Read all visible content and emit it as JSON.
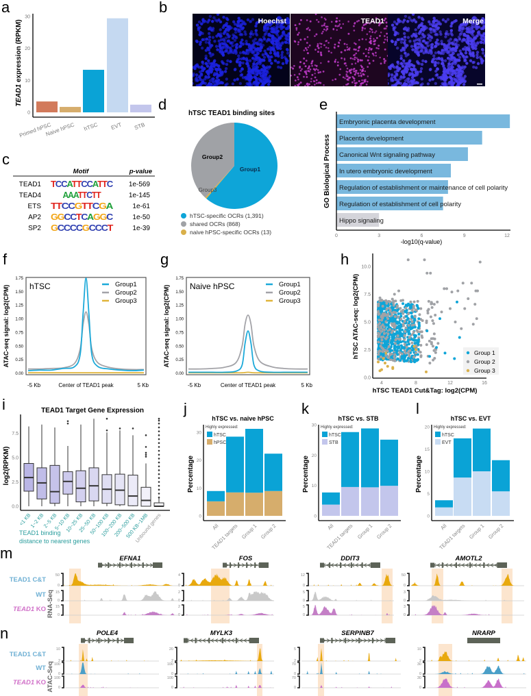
{
  "panel_labels": {
    "a": "a",
    "b": "b",
    "c": "c",
    "d": "d",
    "e": "e",
    "f": "f",
    "g": "g",
    "h": "h",
    "i": "i",
    "j": "j",
    "k": "k",
    "l": "l",
    "m": "m",
    "n": "n"
  },
  "panel_b": {
    "channels": [
      "Hoechst",
      "TEAD1",
      "Merge"
    ],
    "colors": {
      "hoechst": "#1c22e0",
      "tead1": "#c23ccb",
      "merge": "#4b3df0"
    }
  },
  "panel_c": {
    "headers": {
      "motif": "Motif",
      "pvalue": "p-value"
    },
    "rows": [
      {
        "name": "TEAD1",
        "motif": "TCCATTCCATTC",
        "pvalue": "1e-569"
      },
      {
        "name": "TEAD4",
        "motif": "AAATTCTT",
        "pvalue": "1e-145"
      },
      {
        "name": "ETS",
        "motif": "TTCCGTTCGA",
        "pvalue": "1e-61"
      },
      {
        "name": "AP2",
        "motif": "GGCCTCAGGC",
        "pvalue": "1e-50"
      },
      {
        "name": "SP2",
        "motif": "GCCCCGCCCT",
        "pvalue": "1e-39"
      }
    ],
    "nucleotide_colors": {
      "A": "#1fa03a",
      "C": "#2f3fb0",
      "G": "#f2a516",
      "T": "#e0261f"
    }
  },
  "chart_data": [
    {
      "id": "a",
      "type": "bar",
      "ylabel_italic": "TEAD1",
      "ylabel": " expression (RPKM)",
      "categories": [
        "Primed hPSC",
        "Naive hPSC",
        "hTSC",
        "EVT",
        "STB"
      ],
      "values": [
        3.4,
        1.7,
        13.3,
        29.4,
        2.4
      ],
      "colors": [
        "#d27a5b",
        "#d6ad6c",
        "#0aa3d6",
        "#c5d9f1",
        "#c3c6ec"
      ],
      "yticks": [
        0,
        10,
        20,
        30
      ],
      "ylim": [
        0,
        31
      ]
    },
    {
      "id": "d",
      "type": "pie",
      "title": "hTSC TEAD1 binding sites",
      "slices": [
        {
          "label": "Group1",
          "legend": "hTSC-specific OCRs (1,391)",
          "value": 1391,
          "color": "#0ea5d8"
        },
        {
          "label": "Group2",
          "legend": "shared OCRs (868)",
          "value": 868,
          "color": "#a0a2a6"
        },
        {
          "label": "Group3",
          "legend": "naive hPSC-specific OCRs (13)",
          "value": 13,
          "color": "#d9b04a"
        }
      ]
    },
    {
      "id": "e",
      "type": "bar",
      "orientation": "horizontal",
      "ylabel": "GO Biological Process",
      "xlabel": "-log10(q-value)",
      "categories": [
        "Embryonic placenta development",
        "Placenta development",
        "Canonical Wnt signaling pathway",
        "In utero embryonic development",
        "Regulation of establishment or maintenance of cell polarity",
        "Regulation of establishment of cell polarity",
        "Hippo signaling"
      ],
      "values": [
        12.2,
        10.25,
        9.25,
        8.05,
        7.85,
        7.5,
        3.0
      ],
      "colors": [
        "#79b8de",
        "#79b8de",
        "#79b8de",
        "#79b8de",
        "#79b8de",
        "#79b8de",
        "#d4d4da"
      ],
      "xticks": [
        0,
        3,
        6,
        9,
        12
      ],
      "xlim": [
        0,
        12.3
      ]
    },
    {
      "id": "f",
      "type": "line",
      "panel_title": "hTSC",
      "ylabel": "ATAC-seq signal: log2(CPM)",
      "xtick_labels": [
        "-5 Kb",
        "Center of TEAD1 peak",
        "5 Kb"
      ],
      "x": [
        -5,
        -4,
        -3,
        -2,
        -1,
        -0.5,
        -0.25,
        0,
        0.25,
        0.5,
        1,
        2,
        3,
        4,
        5
      ],
      "series": [
        {
          "name": "Group1",
          "color": "#1ba9d9",
          "values": [
            0.05,
            0.06,
            0.06,
            0.09,
            0.12,
            0.35,
            1.1,
            1.75,
            1.1,
            0.35,
            0.13,
            0.08,
            0.06,
            0.05,
            0.06
          ]
        },
        {
          "name": "Group2",
          "color": "#a3a3a8",
          "values": [
            0.08,
            0.08,
            0.09,
            0.1,
            0.18,
            0.45,
            0.9,
            1.13,
            0.9,
            0.45,
            0.2,
            0.11,
            0.08,
            0.07,
            0.07
          ]
        },
        {
          "name": "Group3",
          "color": "#e0b43a",
          "values": [
            0.01,
            0.01,
            0.01,
            0.01,
            0.01,
            0.01,
            0.01,
            0.01,
            0.01,
            0.01,
            0.01,
            0.01,
            0.01,
            0.01,
            0.01
          ]
        }
      ],
      "yticks": [
        0,
        0.25,
        0.5,
        0.75,
        1,
        1.25,
        1.5,
        1.75
      ],
      "ylim": [
        0,
        1.79
      ],
      "xlim": [
        -5,
        5
      ]
    },
    {
      "id": "g",
      "type": "line",
      "panel_title": "Naive hPSC",
      "ylabel": "ATAC-seq signal: log2(CPM)",
      "xtick_labels": [
        "-5 Kb",
        "Center of TEAD1 peak",
        "5 Kb"
      ],
      "x": [
        -5,
        -4,
        -3,
        -2,
        -1,
        -0.5,
        -0.25,
        0,
        0.25,
        0.5,
        1,
        2,
        3,
        4,
        5
      ],
      "series": [
        {
          "name": "Group1",
          "color": "#1ba9d9",
          "values": [
            0.02,
            0.02,
            0.02,
            0.02,
            0.04,
            0.15,
            0.55,
            0.78,
            0.55,
            0.15,
            0.04,
            0.02,
            0.02,
            0.02,
            0.02
          ]
        },
        {
          "name": "Group2",
          "color": "#a3a3a8",
          "values": [
            0.08,
            0.08,
            0.09,
            0.11,
            0.2,
            0.5,
            0.9,
            1.07,
            0.9,
            0.5,
            0.22,
            0.12,
            0.09,
            0.08,
            0.08
          ]
        },
        {
          "name": "Group3",
          "color": "#e0b43a",
          "values": [
            0.01,
            0.01,
            0.01,
            0.01,
            0.01,
            0.01,
            0.015,
            0.02,
            0.015,
            0.01,
            0.01,
            0.01,
            0.01,
            0.01,
            0.01
          ]
        }
      ],
      "yticks": [
        0,
        0.25,
        0.5,
        0.75,
        1,
        1.25,
        1.5,
        1.75
      ],
      "ylim": [
        0,
        1.79
      ],
      "xlim": [
        -5,
        5
      ]
    },
    {
      "id": "h",
      "type": "scatter",
      "xlabel": "hTSC TEAD1 Cut&Tag: log2(CPM)",
      "ylabel": "hTSC ATAC-seq: log2(CPM)",
      "xticks": [
        4,
        8,
        12,
        16
      ],
      "yticks": [
        0,
        2.5,
        5,
        7.5,
        10
      ],
      "xlim": [
        3,
        16.5
      ],
      "ylim": [
        0,
        11
      ],
      "legend": "bottom-right",
      "series": [
        {
          "name": "Group 1",
          "color": "#0ea5d8",
          "points": [
            [
              12.8,
              6.8
            ],
            [
              13.1,
              3.6
            ],
            [
              11.4,
              2.2
            ],
            [
              12.5,
              1.7
            ],
            [
              9.6,
              1.9
            ],
            [
              8.2,
              1.6
            ],
            [
              10.8,
              5.3
            ],
            [
              10.4,
              2.7
            ],
            [
              7.4,
              1.5
            ],
            [
              9.3,
              4.2
            ]
          ]
        },
        {
          "name": "Group 2",
          "color": "#a0a2a6",
          "points": [
            [
              7.1,
              10.6
            ],
            [
              9.0,
              10.6
            ],
            [
              9.3,
              9.4
            ],
            [
              9.7,
              9.4
            ],
            [
              15.5,
              10.4
            ],
            [
              13.5,
              8.5
            ],
            [
              14.5,
              8.5
            ],
            [
              15.0,
              7.8
            ],
            [
              15.2,
              7.8
            ],
            [
              11.3,
              8.0
            ],
            [
              11.6,
              8.0
            ],
            [
              12.2,
              7.7
            ],
            [
              12.9,
              7.8
            ],
            [
              14.1,
              7.1
            ],
            [
              13.7,
              6.2
            ],
            [
              14.9,
              6.6
            ],
            [
              15.1,
              5.3
            ],
            [
              14.7,
              4.8
            ],
            [
              12.6,
              5.0
            ],
            [
              13.3,
              4.4
            ],
            [
              12.0,
              6.2
            ],
            [
              11.0,
              5.9
            ],
            [
              10.5,
              6.8
            ],
            [
              9.4,
              5.8
            ],
            [
              6.0,
              7.8
            ],
            [
              5.5,
              7.5
            ]
          ]
        },
        {
          "name": "Group 3",
          "color": "#d9b04a",
          "points": [
            [
              3.6,
              1.4
            ],
            [
              3.8,
              0.6
            ],
            [
              4.0,
              0.7
            ],
            [
              4.2,
              1.7
            ],
            [
              4.4,
              1.3
            ],
            [
              4.7,
              1.0
            ],
            [
              5.3,
              0.9
            ],
            [
              5.3,
              0.8
            ],
            [
              4.5,
              2.2
            ],
            [
              8.0,
              2.5
            ],
            [
              9.2,
              0.5
            ],
            [
              7.8,
              2.8
            ]
          ]
        }
      ]
    },
    {
      "id": "i",
      "type": "boxplot",
      "title": "TEAD1 Target Gene Expression",
      "ylabel": "log2(RPKM)",
      "xlabel_lines": [
        "TEAD1 binding",
        "distance to nearest genes"
      ],
      "yticks": [
        0,
        2.5,
        5,
        7.5
      ],
      "ylim": [
        0,
        9.4
      ],
      "categories": [
        "<1 KB",
        "1~2 KB",
        "2~5 KB",
        "5~10 KB",
        "10~25 KB",
        "25~50 KB",
        "50~100 KB",
        "100~200 KB",
        "200~500 KB",
        "500 KB~1MB",
        "Unbound genes"
      ],
      "boxes": [
        {
          "min": 0,
          "q1": 1.55,
          "median": 2.95,
          "q3": 4.4,
          "max": 8.2,
          "outliers": []
        },
        {
          "min": 0,
          "q1": 0.75,
          "median": 2.4,
          "q3": 3.95,
          "max": 8.4,
          "outliers": []
        },
        {
          "min": 0,
          "q1": 0.3,
          "median": 1.5,
          "q3": 4.2,
          "max": 8.1,
          "outliers": []
        },
        {
          "min": 0,
          "q1": 1.25,
          "median": 2.55,
          "q3": 3.55,
          "max": 6.2,
          "outliers": [
            8.5,
            8.75
          ]
        },
        {
          "min": 0,
          "q1": 0.45,
          "median": 1.85,
          "q3": 3.65,
          "max": 8.4,
          "outliers": []
        },
        {
          "min": 0,
          "q1": 0.55,
          "median": 2.1,
          "q3": 3.95,
          "max": 9.0,
          "outliers": []
        },
        {
          "min": 0,
          "q1": 0.3,
          "median": 1.75,
          "q3": 3.25,
          "max": 7.6,
          "outliers": [
            7.8,
            9.0
          ]
        },
        {
          "min": 0,
          "q1": 0.15,
          "median": 1.65,
          "q3": 3.3,
          "max": 7.8,
          "outliers": [
            8.0
          ]
        },
        {
          "min": 0,
          "q1": 0.05,
          "median": 1.05,
          "q3": 3.2,
          "max": 7.3,
          "outliers": [
            8.0
          ]
        },
        {
          "min": 0,
          "q1": 0,
          "median": 0.6,
          "q3": 1.95,
          "max": 4.4,
          "outliers": [
            5.1,
            5.3,
            5.5,
            6.1,
            7.3
          ]
        },
        {
          "min": 0,
          "q1": 0,
          "median": 0,
          "q3": 0.35,
          "max": 0.85,
          "outliers": [
            0.9,
            1.3,
            1.7,
            2.1,
            2.5,
            2.9,
            3.3,
            3.7,
            4.1,
            4.5,
            4.9,
            5.3,
            5.7,
            6.1,
            6.5,
            6.9,
            7.3,
            7.7,
            8.1,
            8.5,
            8.8,
            9.0
          ]
        }
      ],
      "label_colors": {
        "bound": "#2a9d9d",
        "unbound": "#9a9a9a"
      }
    },
    {
      "id": "j",
      "type": "bar",
      "stacked": true,
      "title": "hTSC vs. naive hPSC",
      "ylabel": "Percentage",
      "legend_title": "Highly expressed:",
      "legend": "top-left",
      "categories": [
        "All",
        "TEAD1 targets",
        "Group 1",
        "Group 2"
      ],
      "series": [
        {
          "name": "hPSC",
          "color": "#d6ad6c",
          "values": [
            5.2,
            8.4,
            8.3,
            8.9
          ]
        },
        {
          "name": "hTSC",
          "color": "#0aa3d6",
          "values": [
            3.7,
            20.0,
            22.9,
            13.4
          ]
        }
      ],
      "yticks": [
        0,
        10,
        20,
        30
      ],
      "ylim": [
        0,
        32
      ]
    },
    {
      "id": "k",
      "type": "bar",
      "stacked": true,
      "title": "hTSC vs.  STB",
      "ylabel": "Percentage",
      "legend_title": "Highly expressed:",
      "legend": "top-left",
      "categories": [
        "All",
        "TEAD1 targets",
        "Group 1",
        "Group 2"
      ],
      "series": [
        {
          "name": "STB",
          "color": "#c3c6ec",
          "values": [
            3.7,
            9.5,
            9.4,
            9.9
          ]
        },
        {
          "name": "hTSC",
          "color": "#0aa3d6",
          "values": [
            4.0,
            18.1,
            19.4,
            15.2
          ]
        }
      ],
      "yticks": [
        0,
        10,
        20,
        30
      ],
      "ylim": [
        0,
        30
      ]
    },
    {
      "id": "l",
      "type": "bar",
      "stacked": true,
      "title": "hTSC vs. EVT",
      "ylabel": "Percentage",
      "legend_title": "Highly expressed:",
      "legend": "top-left",
      "categories": [
        "All",
        "TEAD1 targets",
        "Group 1",
        "Group 2"
      ],
      "series": [
        {
          "name": "EVT",
          "color": "#c8dcf3",
          "values": [
            1.9,
            8.6,
            10.0,
            5.5
          ]
        },
        {
          "name": "hTSC",
          "color": "#0aa3d6",
          "values": [
            1.6,
            8.8,
            9.6,
            7.0
          ]
        }
      ],
      "yticks": [
        0,
        5,
        10,
        15,
        20
      ],
      "ylim": [
        0,
        20
      ]
    }
  ],
  "panel_m": {
    "assay": "RNA-Seq",
    "track_labels": [
      {
        "prefix": "TEAD1 C&T",
        "italic": false
      },
      {
        "prefix": "WT",
        "italic": false
      },
      {
        "prefix": "TEAD1",
        "suffix": " KO",
        "italic": true
      }
    ],
    "colors": {
      "cut_tag": "#e8a90e",
      "wt": "#c9c9c9",
      "ko": "#c47fc6",
      "highlight": "#fbe1c6",
      "label_blue": "#6fb0d4",
      "label_pink": "#d070c8",
      "gene": "#5d6358"
    },
    "genes": [
      {
        "name": "EFNA1",
        "scales": [
          [
            "50",
            "0"
          ],
          [
            "15",
            "0"
          ],
          [
            "15",
            "0"
          ]
        ]
      },
      {
        "name": "FOS",
        "scales": [
          [
            "4",
            "0"
          ],
          [
            "2",
            "0"
          ],
          [
            "2",
            "0"
          ]
        ]
      },
      {
        "name": "DDIT3",
        "scales": [
          [
            "12",
            "0"
          ],
          [
            "5",
            "0"
          ],
          [
            "5",
            "0"
          ]
        ]
      },
      {
        "name": "AMOTL2",
        "scales": [
          [
            "50",
            "0"
          ],
          [
            "3",
            "0"
          ],
          [
            "3",
            "0"
          ]
        ]
      }
    ]
  },
  "panel_n": {
    "assay": "ATAC-Seq",
    "colors": {
      "cut_tag": "#e8a90e",
      "wt": "#4a9fc8",
      "ko": "#c86fca"
    },
    "genes": [
      {
        "name": "POLE4",
        "scales": [
          [
            "10",
            "2"
          ],
          [
            "100",
            "0"
          ],
          [
            "100",
            "0"
          ]
        ]
      },
      {
        "name": "MYLK3",
        "scales": [
          [
            "20",
            "2"
          ],
          [
            "100",
            "0"
          ],
          [
            "100",
            "0"
          ]
        ]
      },
      {
        "name": "SERPINB7",
        "scales": [
          [
            "5",
            "2"
          ],
          [
            "70",
            "0"
          ],
          [
            "70",
            "0"
          ]
        ]
      },
      {
        "name": "NRARP",
        "scales": [
          [
            "10",
            "2"
          ],
          [
            "30",
            "0"
          ],
          [
            "30",
            "0"
          ]
        ]
      }
    ]
  }
}
